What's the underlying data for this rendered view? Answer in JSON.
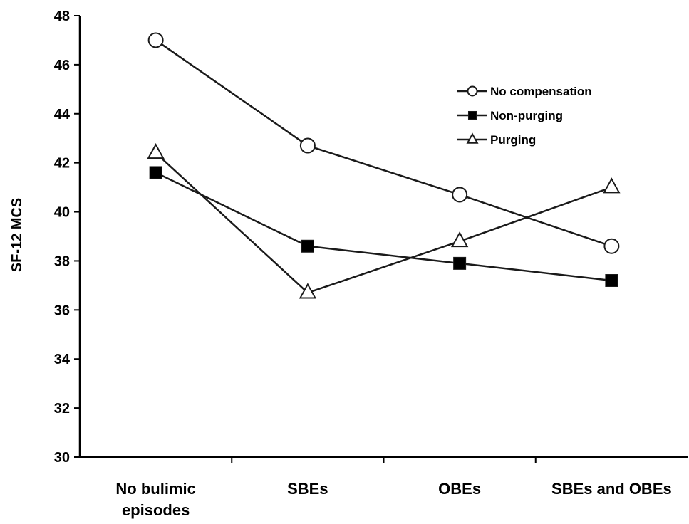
{
  "chart_data": {
    "type": "line",
    "title": "",
    "xlabel": "",
    "ylabel": "SF-12 MCS",
    "categories": [
      [
        "No bulimic",
        "episodes"
      ],
      [
        "SBEs"
      ],
      [
        "OBEs"
      ],
      [
        "SBEs and OBEs"
      ]
    ],
    "ylim": [
      30,
      48
    ],
    "yticks": [
      30,
      32,
      34,
      36,
      38,
      40,
      42,
      44,
      46,
      48
    ],
    "grid": false,
    "legend_position": "top-right",
    "series": [
      {
        "name": "No compensation",
        "marker": "circle-open",
        "values": [
          47.0,
          42.7,
          40.7,
          38.6
        ]
      },
      {
        "name": "Non-purging",
        "marker": "square-filled",
        "values": [
          41.6,
          38.6,
          37.9,
          37.2
        ]
      },
      {
        "name": "Purging",
        "marker": "triangle-open",
        "values": [
          42.4,
          36.7,
          38.8,
          41.0
        ]
      }
    ],
    "colors": {
      "line": "#1a1a1a",
      "marker_fill_open": "#ffffff",
      "marker_fill_filled": "#000000",
      "axis": "#000000"
    }
  }
}
